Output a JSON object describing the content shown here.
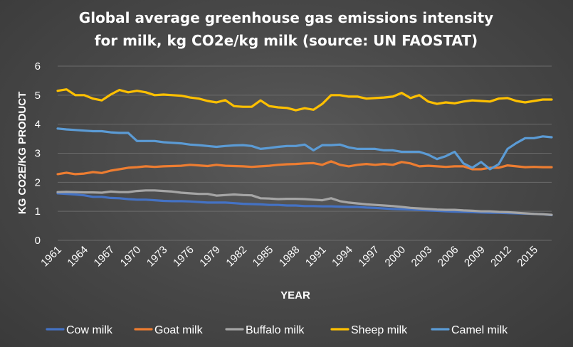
{
  "chart_data": {
    "type": "line",
    "title_line1": "Global average greenhouse gas emissions intensity",
    "title_line2": "for milk, kg CO2e/kg milk (source: UN FAOSTAT)",
    "xlabel": "YEAR",
    "ylabel": "KG CO2E/KG PRODUCT",
    "ylim": [
      0,
      6
    ],
    "yticks": [
      0,
      1,
      2,
      3,
      4,
      5,
      6
    ],
    "x": [
      1961,
      1962,
      1963,
      1964,
      1965,
      1966,
      1967,
      1968,
      1969,
      1970,
      1971,
      1972,
      1973,
      1974,
      1975,
      1976,
      1977,
      1978,
      1979,
      1980,
      1981,
      1982,
      1983,
      1984,
      1985,
      1986,
      1987,
      1988,
      1989,
      1990,
      1991,
      1992,
      1993,
      1994,
      1995,
      1996,
      1997,
      1998,
      1999,
      2000,
      2001,
      2002,
      2003,
      2004,
      2005,
      2006,
      2007,
      2008,
      2009,
      2010,
      2011,
      2012,
      2013,
      2014,
      2015,
      2016,
      2017
    ],
    "xtick_labels": [
      "1961",
      "1964",
      "1967",
      "1970",
      "1973",
      "1976",
      "1979",
      "1982",
      "1985",
      "1988",
      "1991",
      "1994",
      "1997",
      "2000",
      "2003",
      "2006",
      "2009",
      "2012",
      "2015"
    ],
    "gridlines": true,
    "legend_position": "bottom",
    "series": [
      {
        "name": "Cow milk",
        "color": "#4472c4",
        "values": [
          1.62,
          1.6,
          1.58,
          1.55,
          1.5,
          1.5,
          1.46,
          1.45,
          1.42,
          1.4,
          1.4,
          1.38,
          1.36,
          1.35,
          1.35,
          1.34,
          1.32,
          1.3,
          1.3,
          1.3,
          1.28,
          1.26,
          1.25,
          1.24,
          1.22,
          1.22,
          1.2,
          1.2,
          1.18,
          1.18,
          1.17,
          1.17,
          1.16,
          1.15,
          1.15,
          1.13,
          1.12,
          1.1,
          1.08,
          1.07,
          1.06,
          1.05,
          1.03,
          1.02,
          1.0,
          0.99,
          0.98,
          0.97,
          0.96,
          0.95,
          0.95,
          0.94,
          0.93,
          0.92,
          0.91,
          0.9,
          0.87
        ]
      },
      {
        "name": "Goat milk",
        "color": "#ed7d31",
        "values": [
          2.28,
          2.33,
          2.28,
          2.3,
          2.35,
          2.32,
          2.4,
          2.45,
          2.5,
          2.52,
          2.55,
          2.53,
          2.55,
          2.56,
          2.57,
          2.6,
          2.58,
          2.56,
          2.6,
          2.57,
          2.56,
          2.55,
          2.53,
          2.55,
          2.57,
          2.6,
          2.62,
          2.63,
          2.65,
          2.66,
          2.6,
          2.72,
          2.6,
          2.55,
          2.6,
          2.63,
          2.6,
          2.63,
          2.6,
          2.7,
          2.65,
          2.55,
          2.57,
          2.55,
          2.53,
          2.55,
          2.55,
          2.45,
          2.45,
          2.5,
          2.5,
          2.58,
          2.55,
          2.52,
          2.53,
          2.52,
          2.52
        ]
      },
      {
        "name": "Buffalo milk",
        "color": "#a5a5a5",
        "values": [
          1.66,
          1.67,
          1.66,
          1.65,
          1.65,
          1.64,
          1.68,
          1.66,
          1.66,
          1.7,
          1.72,
          1.72,
          1.7,
          1.68,
          1.64,
          1.62,
          1.6,
          1.6,
          1.54,
          1.56,
          1.58,
          1.56,
          1.55,
          1.45,
          1.44,
          1.42,
          1.43,
          1.43,
          1.42,
          1.4,
          1.38,
          1.45,
          1.35,
          1.3,
          1.27,
          1.24,
          1.22,
          1.2,
          1.18,
          1.15,
          1.12,
          1.1,
          1.08,
          1.06,
          1.05,
          1.05,
          1.03,
          1.02,
          1.0,
          1.0,
          0.98,
          0.97,
          0.95,
          0.93,
          0.91,
          0.9,
          0.88
        ]
      },
      {
        "name": "Sheep milk",
        "color": "#ffc000",
        "values": [
          5.15,
          5.2,
          5.0,
          5.0,
          4.88,
          4.82,
          5.02,
          5.18,
          5.1,
          5.15,
          5.1,
          5.0,
          5.02,
          5.0,
          4.98,
          4.92,
          4.88,
          4.8,
          4.75,
          4.83,
          4.62,
          4.6,
          4.6,
          4.82,
          4.62,
          4.58,
          4.56,
          4.48,
          4.55,
          4.5,
          4.7,
          5.0,
          5.0,
          4.95,
          4.95,
          4.88,
          4.9,
          4.92,
          4.95,
          5.08,
          4.9,
          5.0,
          4.78,
          4.7,
          4.75,
          4.72,
          4.78,
          4.82,
          4.8,
          4.78,
          4.88,
          4.9,
          4.8,
          4.75,
          4.8,
          4.85,
          4.85
        ]
      },
      {
        "name": "Camel milk",
        "color": "#5b9bd5",
        "values": [
          3.85,
          3.82,
          3.8,
          3.78,
          3.76,
          3.76,
          3.72,
          3.7,
          3.7,
          3.42,
          3.42,
          3.42,
          3.38,
          3.36,
          3.34,
          3.3,
          3.28,
          3.25,
          3.22,
          3.25,
          3.27,
          3.28,
          3.25,
          3.15,
          3.18,
          3.22,
          3.25,
          3.25,
          3.3,
          3.1,
          3.28,
          3.28,
          3.3,
          3.2,
          3.15,
          3.15,
          3.15,
          3.1,
          3.1,
          3.05,
          3.05,
          3.05,
          2.95,
          2.8,
          2.9,
          3.05,
          2.65,
          2.5,
          2.7,
          2.45,
          2.62,
          3.15,
          3.35,
          3.52,
          3.52,
          3.58,
          3.55
        ]
      }
    ]
  }
}
